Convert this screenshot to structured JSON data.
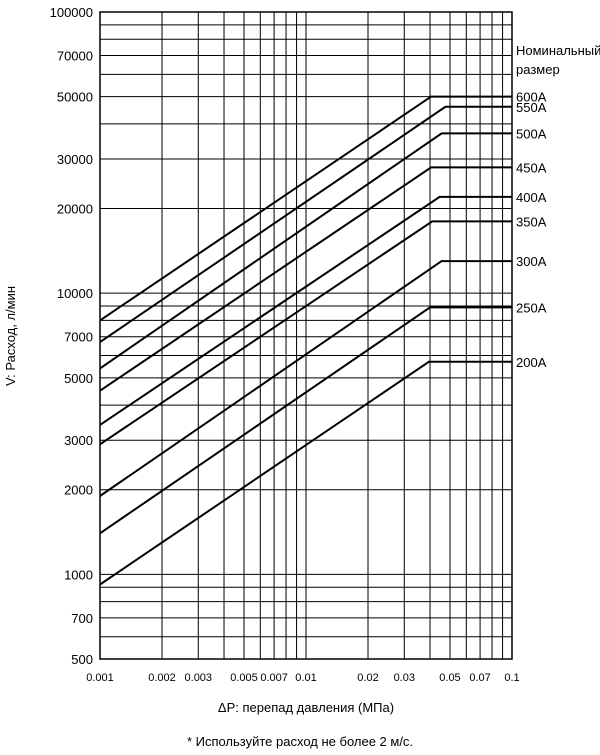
{
  "chart_data": {
    "type": "line",
    "title": "",
    "xlabel": "ΔP: перепад давления (МПа)",
    "ylabel": "V: Расход, л/мин",
    "x_scale": "log",
    "y_scale": "log",
    "xlim": [
      0.001,
      0.1
    ],
    "ylim": [
      500,
      100000
    ],
    "grid": true,
    "x_ticks": [
      {
        "value": 0.001,
        "label": "0.001"
      },
      {
        "value": 0.002,
        "label": "0.002"
      },
      {
        "value": 0.003,
        "label": "0.003"
      },
      {
        "value": 0.005,
        "label": "0.005"
      },
      {
        "value": 0.007,
        "label": "0.007"
      },
      {
        "value": 0.01,
        "label": "0.01"
      },
      {
        "value": 0.02,
        "label": "0.02"
      },
      {
        "value": 0.03,
        "label": "0.03"
      },
      {
        "value": 0.05,
        "label": "0.05"
      },
      {
        "value": 0.07,
        "label": "0.07"
      },
      {
        "value": 0.1,
        "label": "0.1"
      }
    ],
    "y_ticks": [
      {
        "value": 100000,
        "label": "100000"
      },
      {
        "value": 70000,
        "label": "70000"
      },
      {
        "value": 50000,
        "label": "50000"
      },
      {
        "value": 30000,
        "label": "30000"
      },
      {
        "value": 20000,
        "label": "20000"
      },
      {
        "value": 10000,
        "label": "10000"
      },
      {
        "value": 7000,
        "label": "7000"
      },
      {
        "value": 5000,
        "label": "5000"
      },
      {
        "value": 3000,
        "label": "3000"
      },
      {
        "value": 2000,
        "label": "2000"
      },
      {
        "value": 1000,
        "label": "1000"
      },
      {
        "value": 700,
        "label": "700"
      },
      {
        "value": 500,
        "label": "500"
      }
    ],
    "legend_title": [
      "Номинальный",
      "размер"
    ],
    "legend_placement": "right",
    "series": [
      {
        "name": "600A",
        "points": [
          [
            0.001,
            8000
          ],
          [
            0.0405,
            50000
          ],
          [
            0.1,
            50000
          ]
        ]
      },
      {
        "name": "550A",
        "points": [
          [
            0.001,
            6700
          ],
          [
            0.0475,
            46000
          ],
          [
            0.1,
            46000
          ]
        ]
      },
      {
        "name": "500A",
        "points": [
          [
            0.001,
            5400
          ],
          [
            0.0455,
            37000
          ],
          [
            0.1,
            37000
          ]
        ]
      },
      {
        "name": "450A",
        "points": [
          [
            0.001,
            4500
          ],
          [
            0.0405,
            28000
          ],
          [
            0.1,
            28000
          ]
        ]
      },
      {
        "name": "400A",
        "points": [
          [
            0.001,
            3400
          ],
          [
            0.0445,
            22000
          ],
          [
            0.1,
            22000
          ]
        ]
      },
      {
        "name": "350A",
        "points": [
          [
            0.001,
            2900
          ],
          [
            0.041,
            18000
          ],
          [
            0.1,
            18000
          ]
        ]
      },
      {
        "name": "300A",
        "points": [
          [
            0.001,
            1900
          ],
          [
            0.0455,
            13000
          ],
          [
            0.1,
            13000
          ]
        ]
      },
      {
        "name": "250A",
        "points": [
          [
            0.001,
            1400
          ],
          [
            0.04,
            8900
          ],
          [
            0.1,
            8900
          ]
        ]
      },
      {
        "name": "200A",
        "points": [
          [
            0.001,
            920
          ],
          [
            0.0395,
            5700
          ],
          [
            0.1,
            5700
          ]
        ]
      }
    ]
  },
  "footnote": "* Используйте расход не более 2 м/с."
}
